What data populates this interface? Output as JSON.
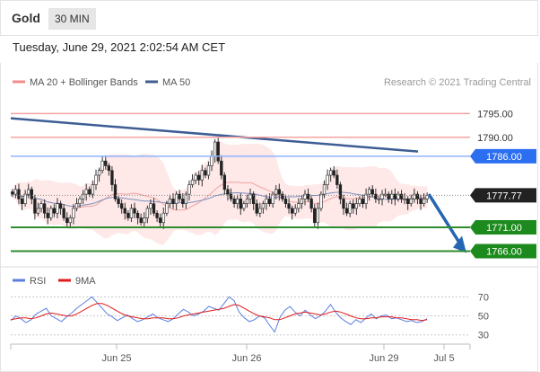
{
  "header": {
    "symbol": "Gold",
    "timeframe": "30 MIN"
  },
  "timestamp": "Tuesday, June 29, 2021 2:02:54 AM CET",
  "legend": {
    "bb_label": "MA 20 + Bollinger Bands",
    "ma50_label": "MA 50",
    "bb_color": "#f28b8b",
    "ma50_color": "#3d5d94",
    "credit": "Research © 2021 Trading Central"
  },
  "chart_data": [
    {
      "type": "candlestick",
      "ylim": [
        1764,
        1800
      ],
      "levels": [
        {
          "label": "1795.00",
          "value": 1795,
          "color": "#f4a3a3",
          "style": "line"
        },
        {
          "label": "1790.00",
          "value": 1790,
          "color": "#f4a3a3",
          "style": "line"
        },
        {
          "label": "1786.00",
          "value": 1786,
          "color": "#8fb4ff",
          "tag": "#2b6ef0"
        },
        {
          "label": "1777.77",
          "value": 1777.77,
          "color": "#888888",
          "style": "dotted",
          "tag": "#222222"
        },
        {
          "label": "1771.00",
          "value": 1771,
          "color": "#2e8b2e",
          "tag": "#1d8a1d"
        },
        {
          "label": "1766.00",
          "value": 1766,
          "color": "#2e8b2e",
          "tag": "#1d8a1d"
        }
      ],
      "trendline": {
        "from": 1794,
        "to": 1787
      },
      "forecast": {
        "from": 1778,
        "to": 1766
      },
      "x_ticks": [
        "Jun 25",
        "Jun 26",
        "Jun 29",
        "Jul 5"
      ],
      "closes": [
        1778,
        1779,
        1777,
        1776,
        1778,
        1779,
        1777,
        1774,
        1775,
        1776,
        1774,
        1773,
        1775,
        1774,
        1776,
        1775,
        1773,
        1772,
        1773,
        1775,
        1776,
        1777,
        1778,
        1779,
        1778,
        1780,
        1782,
        1783,
        1785,
        1784,
        1783,
        1780,
        1777,
        1776,
        1775,
        1774,
        1773,
        1775,
        1774,
        1773,
        1772,
        1773,
        1775,
        1776,
        1774,
        1773,
        1772,
        1774,
        1776,
        1777,
        1776,
        1778,
        1777,
        1776,
        1778,
        1780,
        1781,
        1782,
        1781,
        1783,
        1782,
        1784,
        1786,
        1789,
        1785,
        1782,
        1779,
        1778,
        1777,
        1776,
        1777,
        1775,
        1776,
        1777,
        1778,
        1776,
        1774,
        1775,
        1776,
        1777,
        1776,
        1778,
        1779,
        1778,
        1777,
        1776,
        1775,
        1774,
        1775,
        1776,
        1777,
        1778,
        1777,
        1775,
        1772,
        1775,
        1778,
        1780,
        1782,
        1783,
        1782,
        1780,
        1777,
        1775,
        1774,
        1776,
        1775,
        1776,
        1777,
        1776,
        1778,
        1779,
        1778,
        1777,
        1777,
        1778,
        1778,
        1777,
        1778,
        1777,
        1778,
        1777,
        1777,
        1776,
        1777,
        1778,
        1777,
        1776,
        1777,
        1777.77
      ]
    },
    {
      "type": "line",
      "ylim": [
        25,
        77
      ],
      "y_ticks": [
        "70",
        "50",
        "30"
      ],
      "series": [
        {
          "name": "RSI",
          "color": "#5b7fe0",
          "values": [
            45,
            50,
            47,
            43,
            46,
            52,
            55,
            58,
            50,
            47,
            44,
            49,
            53,
            58,
            62,
            66,
            70,
            64,
            58,
            52,
            49,
            45,
            48,
            51,
            47,
            44,
            46,
            49,
            52,
            48,
            46,
            44,
            47,
            52,
            57,
            54,
            50,
            52,
            55,
            60,
            58,
            56,
            63,
            70,
            66,
            54,
            48,
            44,
            46,
            50,
            48,
            40,
            33,
            48,
            56,
            60,
            54,
            50,
            56,
            51,
            47,
            50,
            55,
            62,
            54,
            48,
            44,
            41,
            46,
            43,
            48,
            52,
            47,
            50,
            51,
            47,
            48,
            46,
            44,
            45,
            43,
            44,
            47
          ]
        },
        {
          "name": "9MA",
          "color": "#e11b1b",
          "values": [
            46,
            47,
            48,
            48,
            47,
            48,
            50,
            52,
            53,
            52,
            51,
            50,
            50,
            52,
            55,
            58,
            61,
            63,
            63,
            61,
            58,
            55,
            52,
            50,
            49,
            48,
            47,
            47,
            48,
            48,
            48,
            47,
            47,
            48,
            50,
            51,
            52,
            53,
            54,
            55,
            56,
            57,
            58,
            60,
            62,
            61,
            58,
            55,
            52,
            50,
            49,
            48,
            46,
            46,
            48,
            50,
            52,
            53,
            54,
            53,
            52,
            51,
            52,
            54,
            55,
            54,
            52,
            50,
            48,
            47,
            47,
            48,
            48,
            49,
            49,
            49,
            48,
            48,
            47,
            46,
            46,
            45,
            46
          ]
        }
      ]
    }
  ]
}
